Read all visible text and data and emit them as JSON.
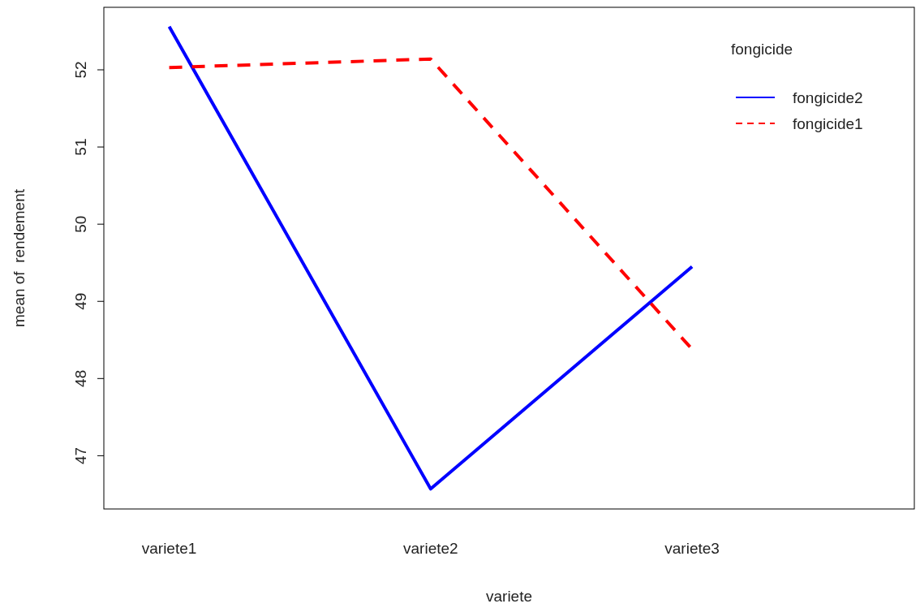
{
  "chart_data": {
    "type": "line",
    "xlabel": "variete",
    "ylabel": "mean of  rendement",
    "legend_title": "fongicide",
    "categories": [
      "variete1",
      "variete2",
      "variete3"
    ],
    "series": [
      {
        "name": "fongicide2",
        "color": "#0000ff",
        "line_style": "solid",
        "values": [
          52.56,
          46.57,
          49.45
        ]
      },
      {
        "name": "fongicide1",
        "color": "#ff0000",
        "line_style": "dashed",
        "values": [
          52.03,
          52.14,
          48.38
        ]
      }
    ],
    "ylim": [
      46.31,
      52.81
    ],
    "yticks": [
      47,
      48,
      49,
      50,
      51,
      52
    ],
    "legend": "top right",
    "grid": false,
    "marker": "none"
  }
}
